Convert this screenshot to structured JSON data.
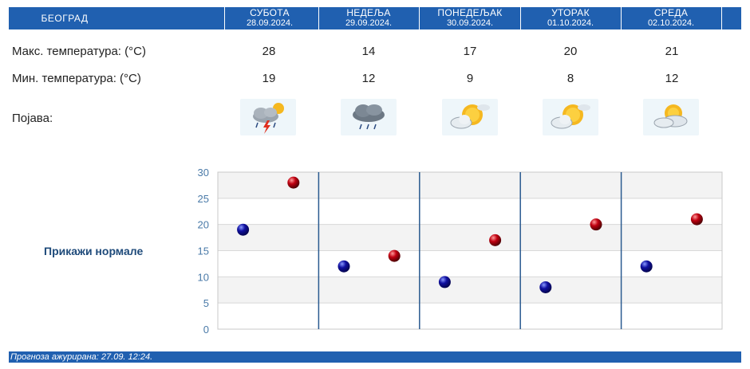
{
  "header": {
    "city": "БЕОГРАД",
    "days": [
      {
        "name": "СУБОТА",
        "date": "28.09.2024."
      },
      {
        "name": "НЕДЕЉА",
        "date": "29.09.2024."
      },
      {
        "name": "ПОНЕДЕЉАК",
        "date": "30.09.2024."
      },
      {
        "name": "УТОРАК",
        "date": "01.10.2024."
      },
      {
        "name": "СРЕДА",
        "date": "02.10.2024."
      }
    ]
  },
  "rows": {
    "max_label": "Макс. температура: (°C)",
    "min_label": "Мин. температура: (°C)",
    "phenomenon_label": "Појава:",
    "max_values": [
      "28",
      "14",
      "17",
      "20",
      "21"
    ],
    "min_values": [
      "19",
      "12",
      "9",
      "8",
      "12"
    ],
    "icons": [
      "thunderstorm-icon",
      "rain-cloud-icon",
      "partly-sunny-icon",
      "partly-sunny-icon",
      "partly-cloudy-icon"
    ]
  },
  "normals_link": "Прикажи нормале",
  "footer": {
    "updated": "Прогноза ажурирана:  27.09.  12:24."
  },
  "colors": {
    "header_bg": "#2060b0",
    "min_dot": "#1010a0",
    "max_dot": "#c00010",
    "axis_text": "#4a7aa8",
    "separator": "#2a5a90"
  },
  "chart_data": {
    "type": "scatter",
    "categories": [
      "28.09.2024.",
      "29.09.2024.",
      "30.09.2024.",
      "01.10.2024.",
      "02.10.2024."
    ],
    "series": [
      {
        "values": [
          19,
          12,
          9,
          8,
          12
        ]
      },
      {
        "values": [
          28,
          14,
          17,
          20,
          21
        ]
      }
    ],
    "ylim": [
      0,
      30
    ],
    "yticks": [
      0,
      5,
      10,
      15,
      20,
      25,
      30
    ],
    "grid": true
  }
}
